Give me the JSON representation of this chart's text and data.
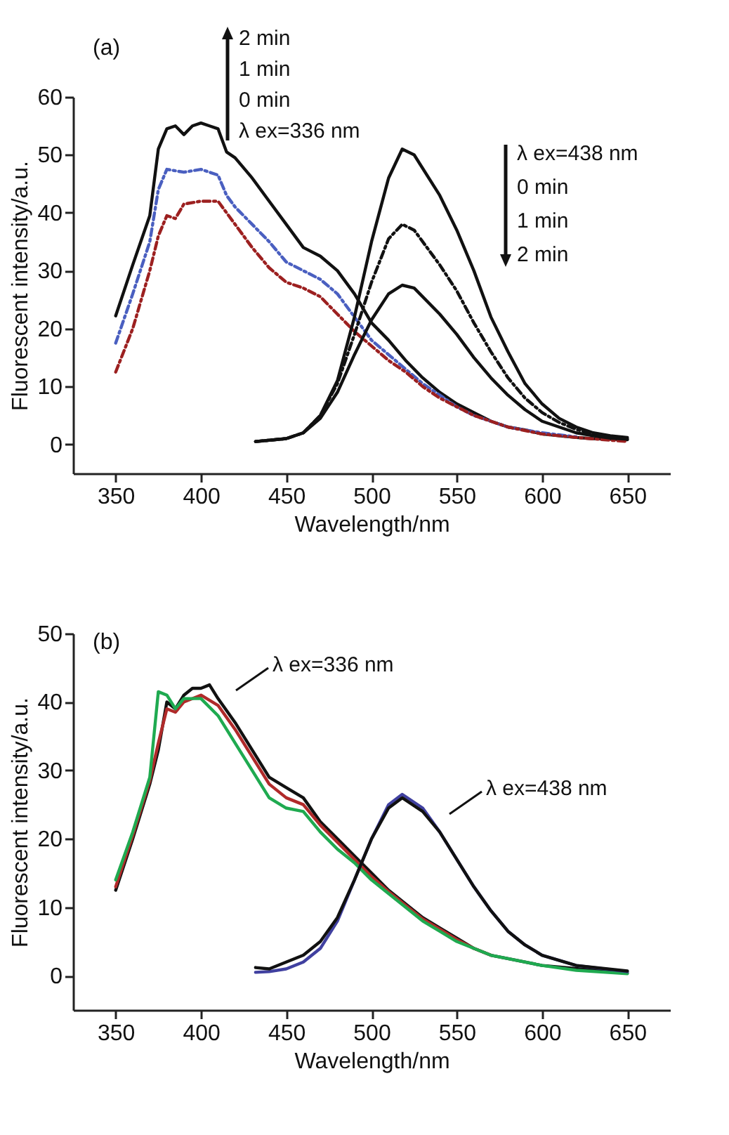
{
  "chart_data": [
    {
      "type": "line",
      "title": "(a)",
      "xlabel": "Wavelength/nm",
      "ylabel": "Fluorescent intensity/a.u.",
      "xlim": [
        325,
        675
      ],
      "xticks": [
        350,
        400,
        450,
        500,
        550,
        600,
        650
      ],
      "ylim": [
        -5,
        60
      ],
      "yticks": [
        0,
        10,
        20,
        30,
        40,
        50,
        60
      ],
      "annotations": [
        "2 min",
        "1 min",
        "0 min",
        "λ ex=336 nm",
        "λ ex=438 nm",
        "0 min",
        "1 min",
        "2 min"
      ],
      "series": [
        {
          "color": "#111111",
          "line_style": "solid",
          "x": [
            350,
            360,
            370,
            375,
            380,
            385,
            390,
            395,
            400,
            405,
            410,
            415,
            420,
            430,
            440,
            450,
            460,
            470,
            480,
            490,
            500,
            510,
            520,
            530,
            540,
            550,
            560,
            570,
            580,
            590,
            600,
            610,
            620,
            630,
            640,
            650
          ],
          "values": [
            22.2,
            31,
            39.5,
            51,
            54.5,
            55,
            53.5,
            55,
            55.5,
            55,
            54.5,
            50.5,
            49.5,
            46,
            42,
            38,
            34,
            32.5,
            30,
            26,
            21,
            18,
            14.5,
            11.5,
            9,
            7,
            5.5,
            4,
            3,
            2.5,
            1.8,
            1.5,
            1.2,
            1,
            0.9,
            0.8
          ]
        },
        {
          "color": "#4a5fc0",
          "line_style": "dashed",
          "x": [
            350,
            360,
            370,
            375,
            380,
            390,
            400,
            410,
            415,
            420,
            430,
            440,
            450,
            460,
            470,
            480,
            490,
            500,
            510,
            520,
            530,
            540,
            550,
            560,
            570,
            580,
            600,
            620
          ],
          "values": [
            17.5,
            26,
            35,
            44,
            47.5,
            47,
            47.5,
            46.5,
            43,
            41,
            38,
            35,
            31.5,
            30,
            28.5,
            26,
            22,
            18,
            15.5,
            13,
            10.5,
            8.5,
            6.5,
            5,
            4,
            3,
            2,
            1.3
          ]
        },
        {
          "color": "#9c2020",
          "line_style": "dashed",
          "x": [
            350,
            360,
            370,
            375,
            380,
            385,
            390,
            400,
            410,
            415,
            420,
            430,
            440,
            450,
            460,
            470,
            480,
            490,
            500,
            510,
            520,
            530,
            540,
            550,
            560,
            570,
            580,
            600,
            620,
            650
          ],
          "values": [
            12.5,
            20,
            30,
            36,
            39.5,
            39,
            41.5,
            42,
            42,
            40,
            38,
            34,
            30.5,
            28,
            27,
            25.5,
            22.5,
            19.5,
            17,
            14.5,
            12.5,
            10,
            8,
            6.5,
            5,
            4,
            3,
            1.8,
            1.2,
            0.5
          ]
        },
        {
          "color": "#111111",
          "line_style": "solid",
          "x": [
            432,
            450,
            460,
            470,
            480,
            490,
            500,
            510,
            518,
            525,
            540,
            550,
            560,
            570,
            580,
            590,
            600,
            610,
            620,
            630,
            640,
            650
          ],
          "values": [
            0.5,
            1,
            2,
            5,
            11,
            22,
            35,
            46,
            51,
            50,
            43,
            37,
            30,
            22,
            16,
            10.5,
            7,
            4.5,
            3,
            2,
            1.5,
            1.2
          ]
        },
        {
          "color": "#111111",
          "line_style": "dashed",
          "x": [
            432,
            450,
            460,
            470,
            480,
            490,
            500,
            510,
            518,
            525,
            540,
            550,
            560,
            570,
            580,
            590,
            600,
            610,
            620,
            630,
            640,
            650
          ],
          "values": [
            0.5,
            1,
            2,
            5,
            10.5,
            19,
            28,
            35.5,
            38,
            37,
            31,
            26.5,
            21,
            16,
            11.5,
            8,
            5.5,
            3.8,
            2.6,
            1.8,
            1.3,
            1
          ]
        },
        {
          "color": "#111111",
          "line_style": "solid",
          "x": [
            432,
            450,
            460,
            470,
            480,
            490,
            500,
            510,
            518,
            525,
            540,
            550,
            560,
            570,
            580,
            590,
            600,
            610,
            620,
            630,
            640,
            650
          ],
          "values": [
            0.5,
            1,
            2,
            4.5,
            9,
            15.5,
            21.5,
            26,
            27.5,
            27,
            22.5,
            19,
            15,
            11.5,
            8.5,
            6,
            4,
            3,
            2,
            1.5,
            1.1,
            0.9
          ]
        }
      ]
    },
    {
      "type": "line",
      "title": "(b)",
      "xlabel": "Wavelength/nm",
      "ylabel": "Fluorescent intensity/a.u.",
      "xlim": [
        325,
        675
      ],
      "xticks": [
        350,
        400,
        450,
        500,
        550,
        600,
        650
      ],
      "ylim": [
        -5,
        50
      ],
      "yticks": [
        0,
        10,
        20,
        30,
        40,
        50
      ],
      "annotations": [
        "λ ex=336 nm",
        "λ ex=438 nm"
      ],
      "series": [
        {
          "color": "#111111",
          "line_style": "solid",
          "x": [
            350,
            360,
            370,
            375,
            380,
            385,
            390,
            395,
            400,
            405,
            410,
            420,
            430,
            440,
            450,
            460,
            470,
            480,
            490,
            500,
            510,
            520,
            530,
            540,
            550,
            560,
            570,
            580,
            600,
            650
          ],
          "values": [
            12.5,
            20,
            28,
            33,
            40,
            39,
            41,
            42,
            42,
            42.5,
            40.5,
            37,
            33,
            29,
            27.5,
            26,
            22.5,
            20,
            17.5,
            15,
            12.5,
            10.5,
            8.5,
            7,
            5.5,
            4,
            3,
            2.5,
            1.5,
            0.4
          ]
        },
        {
          "color": "#b02a2a",
          "line_style": "solid",
          "x": [
            350,
            360,
            370,
            375,
            380,
            385,
            390,
            400,
            410,
            420,
            430,
            440,
            450,
            460,
            470,
            480,
            490,
            500,
            510,
            520,
            530,
            540,
            550,
            560,
            570
          ],
          "values": [
            13,
            20.5,
            28.5,
            34,
            39,
            38.5,
            40,
            41,
            39.5,
            36,
            32,
            28,
            26,
            25,
            22,
            19.5,
            17,
            14.5,
            12.3,
            10.3,
            8.3,
            6.8,
            5.3,
            4,
            3
          ]
        },
        {
          "color": "#1faa50",
          "line_style": "solid",
          "x": [
            350,
            360,
            370,
            375,
            380,
            385,
            390,
            400,
            410,
            420,
            430,
            440,
            450,
            460,
            470,
            480,
            490,
            500,
            510,
            520,
            530,
            540,
            550,
            560,
            570,
            580,
            600,
            620,
            650
          ],
          "values": [
            14,
            21,
            29,
            41.5,
            41,
            39,
            40.5,
            40.5,
            38,
            34,
            30,
            26,
            24.5,
            24,
            21,
            18.5,
            16.5,
            14,
            12,
            10,
            8,
            6.5,
            5,
            4,
            3,
            2.5,
            1.5,
            0.8,
            0.3
          ]
        },
        {
          "color": "#4040a0",
          "line_style": "solid",
          "x": [
            432,
            440,
            450,
            460,
            470,
            480,
            490,
            500,
            510,
            518,
            530,
            540,
            550,
            560,
            570,
            580,
            590,
            600,
            620,
            650
          ],
          "values": [
            0.5,
            0.6,
            1,
            2,
            4,
            8,
            14,
            20,
            25,
            26.5,
            24.5,
            21,
            17,
            13,
            9.5,
            6.5,
            4.5,
            3,
            1.5,
            0.6
          ]
        },
        {
          "color": "#111111",
          "line_style": "solid",
          "x": [
            432,
            440,
            450,
            460,
            470,
            480,
            490,
            500,
            510,
            518,
            530,
            540,
            550,
            560,
            570,
            580,
            590,
            600,
            620,
            650
          ],
          "values": [
            1.2,
            1,
            2,
            3,
            5,
            8.5,
            14,
            20,
            24.5,
            26,
            24,
            21,
            17,
            13,
            9.5,
            6.5,
            4.5,
            3,
            1.5,
            0.7
          ]
        }
      ]
    }
  ]
}
